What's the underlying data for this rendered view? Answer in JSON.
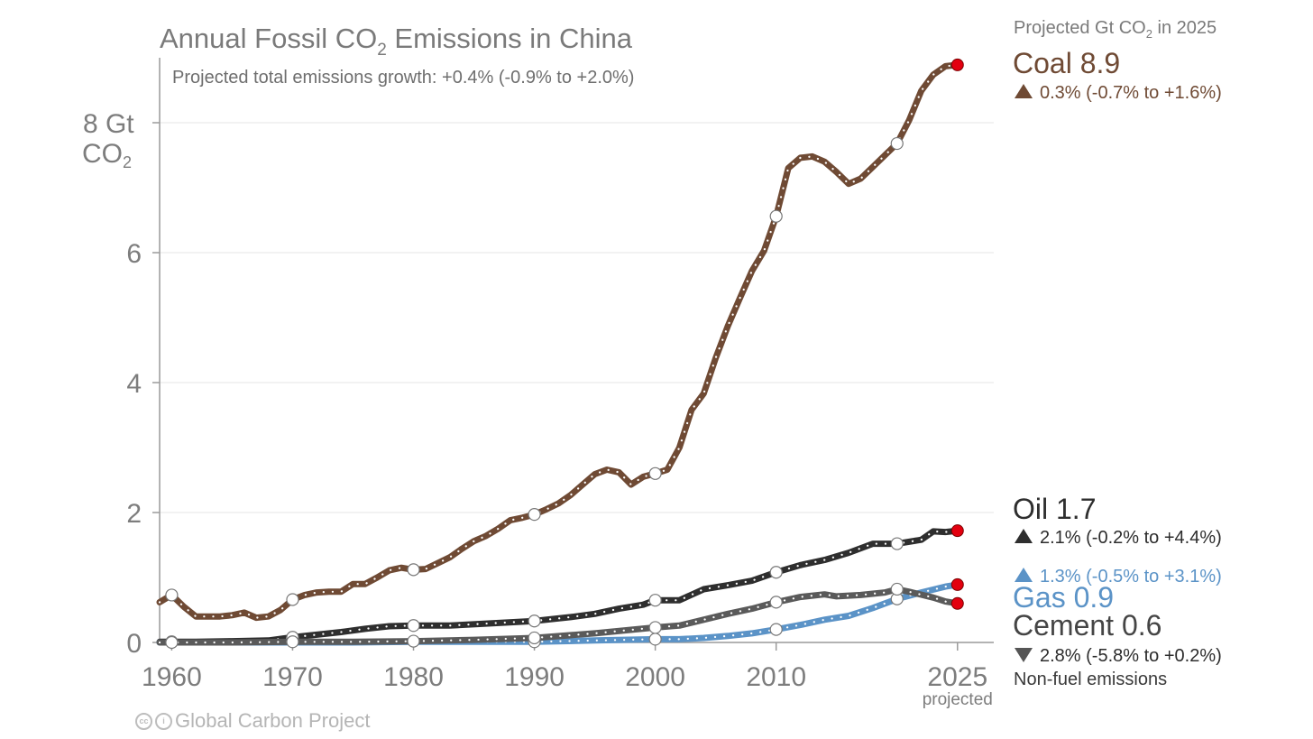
{
  "chart_data": {
    "type": "line",
    "title": "Annual Fossil CO₂ Emissions in China",
    "title_main": "Annual Fossil CO",
    "title_sub": "2",
    "title_rest": " Emissions in China",
    "subtitle": "Projected total emissions growth: +0.4% (-0.9% to +2.0%)",
    "ylabel_line1": "8 Gt",
    "ylabel_line2_main": "CO",
    "ylabel_line2_sub": "2",
    "xlim": [
      1959,
      2028
    ],
    "ylim": [
      0,
      9
    ],
    "yticks": [
      0,
      2,
      4,
      6
    ],
    "xticks": [
      "1960",
      "1970",
      "1980",
      "1990",
      "2000",
      "2010",
      "2025"
    ],
    "x_projected_label": "projected",
    "grid": true,
    "legend_header": "Projected Gt CO₂ in 2025",
    "legend_header_main": "Projected Gt CO",
    "legend_header_sub": "2",
    "legend_header_rest": " in 2025",
    "series": [
      {
        "name": "Coal",
        "value_label": "Coal 8.9",
        "growth": "0.3% (-0.7% to +1.6%)",
        "direction": "up",
        "color": "#6f4a34",
        "x": [
          1959,
          1960,
          1961,
          1962,
          1963,
          1964,
          1965,
          1966,
          1967,
          1968,
          1969,
          1970,
          1971,
          1972,
          1973,
          1974,
          1975,
          1976,
          1977,
          1978,
          1979,
          1980,
          1981,
          1982,
          1983,
          1984,
          1985,
          1986,
          1987,
          1988,
          1989,
          1990,
          1991,
          1992,
          1993,
          1994,
          1995,
          1996,
          1997,
          1998,
          1999,
          2000,
          2001,
          2002,
          2003,
          2004,
          2005,
          2006,
          2007,
          2008,
          2009,
          2010,
          2011,
          2012,
          2013,
          2014,
          2015,
          2016,
          2017,
          2018,
          2019,
          2020,
          2021,
          2022,
          2023,
          2024,
          2025
        ],
        "y": [
          0.62,
          0.73,
          0.55,
          0.4,
          0.4,
          0.4,
          0.42,
          0.46,
          0.38,
          0.4,
          0.5,
          0.66,
          0.73,
          0.77,
          0.78,
          0.78,
          0.9,
          0.9,
          1.0,
          1.11,
          1.15,
          1.12,
          1.13,
          1.22,
          1.31,
          1.44,
          1.56,
          1.64,
          1.75,
          1.88,
          1.92,
          1.97,
          2.05,
          2.14,
          2.27,
          2.43,
          2.59,
          2.66,
          2.62,
          2.43,
          2.55,
          2.6,
          2.66,
          3.0,
          3.58,
          3.83,
          4.38,
          4.87,
          5.3,
          5.72,
          6.03,
          6.56,
          7.3,
          7.46,
          7.48,
          7.4,
          7.24,
          7.06,
          7.14,
          7.32,
          7.5,
          7.68,
          8.04,
          8.49,
          8.74,
          8.87,
          8.89
        ],
        "hollow_x": [
          1960,
          1970,
          1980,
          1990,
          2000,
          2010,
          2020
        ],
        "hollow_y": [
          0.73,
          0.66,
          1.12,
          1.97,
          2.6,
          6.56,
          7.68
        ]
      },
      {
        "name": "Oil",
        "value_label": "Oil 1.7",
        "growth": "2.1% (-0.2% to +4.4%)",
        "direction": "up",
        "color": "#2e2e2e",
        "x": [
          1959,
          1962,
          1965,
          1968,
          1970,
          1972,
          1974,
          1976,
          1978,
          1980,
          1983,
          1986,
          1990,
          1993,
          1995,
          1997,
          1999,
          2000,
          2002,
          2004,
          2006,
          2008,
          2010,
          2012,
          2014,
          2016,
          2018,
          2020,
          2022,
          2023,
          2024,
          2025
        ],
        "y": [
          0.01,
          0.01,
          0.02,
          0.03,
          0.08,
          0.12,
          0.16,
          0.21,
          0.25,
          0.26,
          0.26,
          0.29,
          0.33,
          0.39,
          0.44,
          0.52,
          0.58,
          0.65,
          0.65,
          0.82,
          0.88,
          0.95,
          1.08,
          1.19,
          1.27,
          1.38,
          1.52,
          1.52,
          1.58,
          1.71,
          1.7,
          1.72
        ],
        "hollow_x": [
          1960,
          1970,
          1980,
          1990,
          2000,
          2010,
          2020
        ],
        "hollow_y": [
          0.01,
          0.08,
          0.26,
          0.33,
          0.65,
          1.08,
          1.52
        ]
      },
      {
        "name": "Gas",
        "value_label": "Gas 0.9",
        "growth": "1.3% (-0.5% to +3.1%)",
        "direction": "up",
        "color": "#5b93c7",
        "x": [
          1959,
          1965,
          1970,
          1975,
          1980,
          1985,
          1990,
          1995,
          2000,
          2002,
          2004,
          2006,
          2008,
          2010,
          2012,
          2014,
          2016,
          2018,
          2020,
          2022,
          2024,
          2025
        ],
        "y": [
          0.0,
          0.0,
          0.0,
          0.0,
          0.01,
          0.01,
          0.01,
          0.03,
          0.05,
          0.05,
          0.07,
          0.1,
          0.14,
          0.2,
          0.27,
          0.35,
          0.41,
          0.53,
          0.67,
          0.77,
          0.86,
          0.89
        ],
        "hollow_x": [
          1990,
          2000,
          2010,
          2020
        ],
        "hollow_y": [
          0.01,
          0.05,
          0.2,
          0.67
        ]
      },
      {
        "name": "Cement",
        "value_label": "Cement 0.6",
        "growth": "2.8% (-5.8% to +0.2%)",
        "direction": "down",
        "note": "Non-fuel emissions",
        "color": "#5a5a5a",
        "x": [
          1959,
          1965,
          1970,
          1975,
          1980,
          1985,
          1990,
          1995,
          2000,
          2002,
          2004,
          2006,
          2008,
          2010,
          2012,
          2014,
          2015,
          2017,
          2019,
          2020,
          2021,
          2023,
          2024,
          2025
        ],
        "y": [
          0.0,
          0.0,
          0.01,
          0.01,
          0.02,
          0.04,
          0.07,
          0.14,
          0.23,
          0.26,
          0.35,
          0.44,
          0.52,
          0.62,
          0.7,
          0.74,
          0.71,
          0.73,
          0.77,
          0.82,
          0.78,
          0.69,
          0.63,
          0.6
        ],
        "hollow_x": [
          1960,
          1970,
          1980,
          1990,
          2000,
          2010,
          2020
        ],
        "hollow_y": [
          0.0,
          0.01,
          0.02,
          0.07,
          0.23,
          0.62,
          0.82
        ]
      }
    ]
  },
  "credit": {
    "text": "Global Carbon Project"
  },
  "colors": {
    "projection_dot": "#e3000f",
    "axis": "#9a9a9a",
    "grid": "#e6e6e6"
  }
}
